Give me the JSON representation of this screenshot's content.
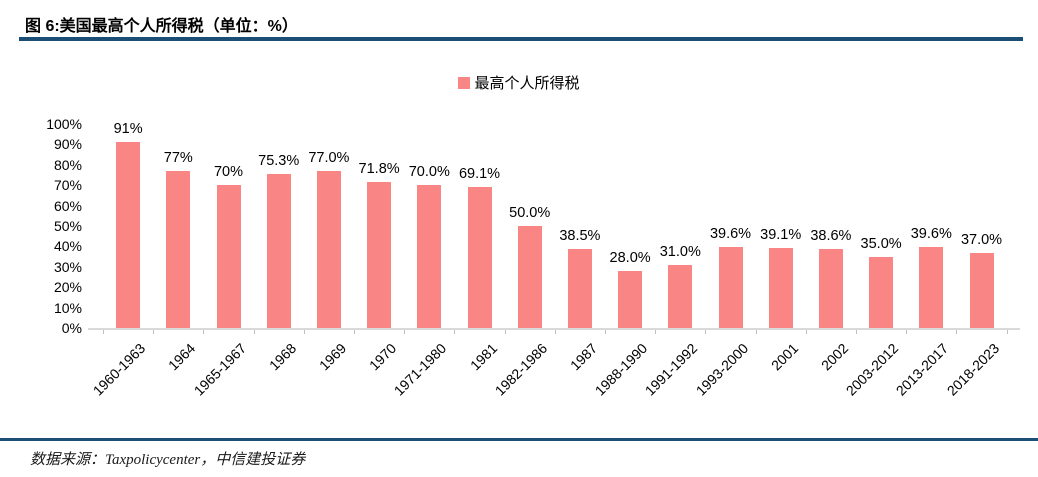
{
  "header": {
    "title": "图 6:美国最高个人所得税（单位：%）"
  },
  "legend": {
    "label": "最高个人所得税"
  },
  "footer": {
    "source_text": "数据来源：Taxpolicycenter，中信建投证券"
  },
  "colors": {
    "bar": "#F98585",
    "rule_navy": "#1B4E74",
    "axis_gray": "#D9D9D9",
    "tick_gray": "#BFBFBF"
  },
  "chart_data": {
    "type": "bar",
    "title": "图 6:美国最高个人所得税（单位：%）",
    "legend": [
      "最高个人所得税"
    ],
    "legend_position": "top-center",
    "categories": [
      "1960-1963",
      "1964",
      "1965-1967",
      "1968",
      "1969",
      "1970",
      "1971-1980",
      "1981",
      "1982-1986",
      "1987",
      "1988-1990",
      "1991-1992",
      "1993-2000",
      "2001",
      "2002",
      "2003-2012",
      "2013-2017",
      "2018-2023"
    ],
    "values": [
      91,
      77,
      70,
      75.3,
      77.0,
      71.8,
      70.0,
      69.1,
      50.0,
      38.5,
      28.0,
      31.0,
      39.6,
      39.1,
      38.6,
      35.0,
      39.6,
      37.0
    ],
    "data_labels": [
      "91%",
      "77%",
      "70%",
      "75.3%",
      "77.0%",
      "71.8%",
      "70.0%",
      "69.1%",
      "50.0%",
      "38.5%",
      "28.0%",
      "31.0%",
      "39.6%",
      "39.1%",
      "38.6%",
      "35.0%",
      "39.6%",
      "37.0%"
    ],
    "xlabel": "",
    "ylabel": "",
    "ylim": [
      0,
      100
    ],
    "ytick_step": 10,
    "ytick_labels": [
      "0%",
      "10%",
      "20%",
      "30%",
      "40%",
      "50%",
      "60%",
      "70%",
      "80%",
      "90%",
      "100%"
    ],
    "grid": false,
    "bar_color": "#F98585"
  }
}
